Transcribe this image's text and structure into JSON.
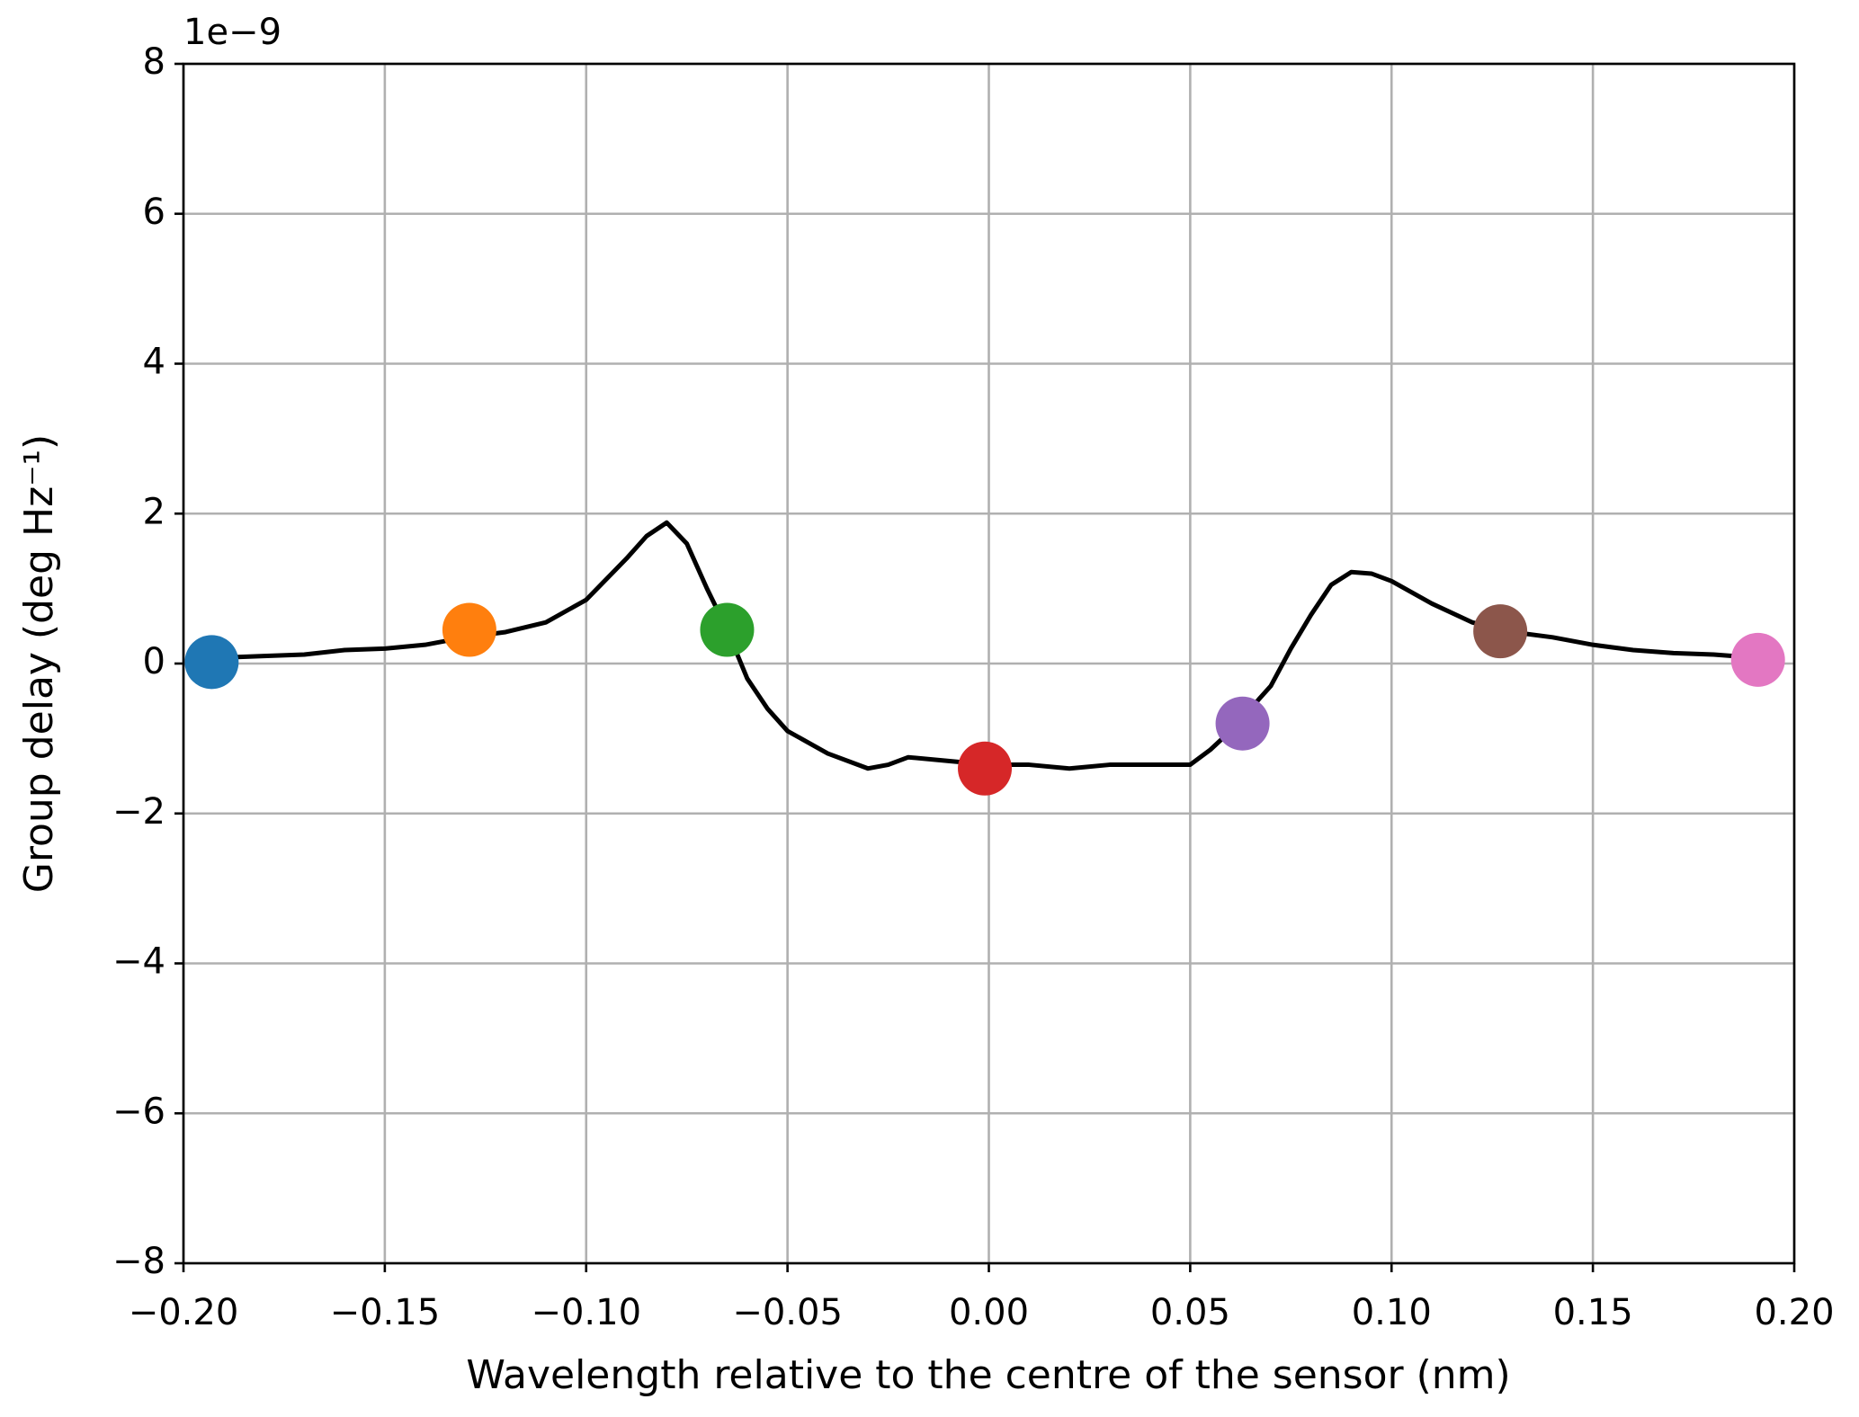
{
  "chart_data": {
    "type": "line",
    "offset_label": "1e−9",
    "xlabel": "Wavelength relative to the centre of the sensor (nm)",
    "ylabel": "Group delay (deg Hz⁻¹)",
    "xlim": [
      -0.2,
      0.2
    ],
    "xticks": [
      {
        "value": -0.2,
        "label": "−0.20"
      },
      {
        "value": -0.15,
        "label": "−0.15"
      },
      {
        "value": -0.1,
        "label": "−0.10"
      },
      {
        "value": -0.05,
        "label": "−0.05"
      },
      {
        "value": 0,
        "label": "0.00"
      },
      0.05,
      {
        "value": 0.1,
        "label": "0.10"
      },
      0.15,
      {
        "value": 0.2,
        "label": "0.20"
      }
    ],
    "ylim": [
      -8,
      8
    ],
    "yticks": [
      {
        "value": -8,
        "label": "−8"
      },
      {
        "value": -6,
        "label": "−6"
      },
      {
        "value": -4,
        "label": "−4"
      },
      {
        "value": -2,
        "label": "−2"
      },
      0,
      2,
      4,
      6,
      8
    ],
    "grid": true,
    "series": [
      {
        "color": "#000000",
        "x": [
          -0.193,
          -0.19,
          -0.18,
          -0.17,
          -0.16,
          -0.15,
          -0.14,
          -0.13,
          -0.12,
          -0.11,
          -0.1,
          -0.09,
          -0.085,
          -0.08,
          -0.075,
          -0.07,
          -0.065,
          -0.06,
          -0.055,
          -0.05,
          -0.04,
          -0.03,
          -0.025,
          -0.02,
          -0.01,
          0,
          0.01,
          0.02,
          0.03,
          0.04,
          0.05,
          0.055,
          0.06,
          0.065,
          0.07,
          0.075,
          0.08,
          0.085,
          0.09,
          0.095,
          0.1,
          0.11,
          0.12,
          0.13,
          0.14,
          0.15,
          0.16,
          0.17,
          0.18,
          0.19
        ],
        "values": [
          0.08,
          0.08,
          0.1,
          0.12,
          0.18,
          0.2,
          0.25,
          0.35,
          0.42,
          0.55,
          0.85,
          1.4,
          1.7,
          1.88,
          1.6,
          1.0,
          0.45,
          -0.2,
          -0.6,
          -0.9,
          -1.2,
          -1.4,
          -1.35,
          -1.25,
          -1.3,
          -1.35,
          -1.35,
          -1.4,
          -1.35,
          -1.35,
          -1.35,
          -1.15,
          -0.9,
          -0.6,
          -0.3,
          0.2,
          0.65,
          1.05,
          1.22,
          1.2,
          1.1,
          0.8,
          0.55,
          0.42,
          0.35,
          0.25,
          0.18,
          0.14,
          0.12,
          0.08
        ]
      }
    ],
    "markers": {
      "x": [
        -0.193,
        -0.129,
        -0.065,
        -0.001,
        0.063,
        0.127,
        0.191
      ],
      "values": [
        0.02,
        0.45,
        0.45,
        -1.4,
        -0.8,
        0.43,
        0.05
      ],
      "colors": [
        "#1f77b4",
        "#ff7f0e",
        "#2ca02c",
        "#d62728",
        "#9467bd",
        "#8c564b",
        "#e377c2"
      ]
    }
  }
}
